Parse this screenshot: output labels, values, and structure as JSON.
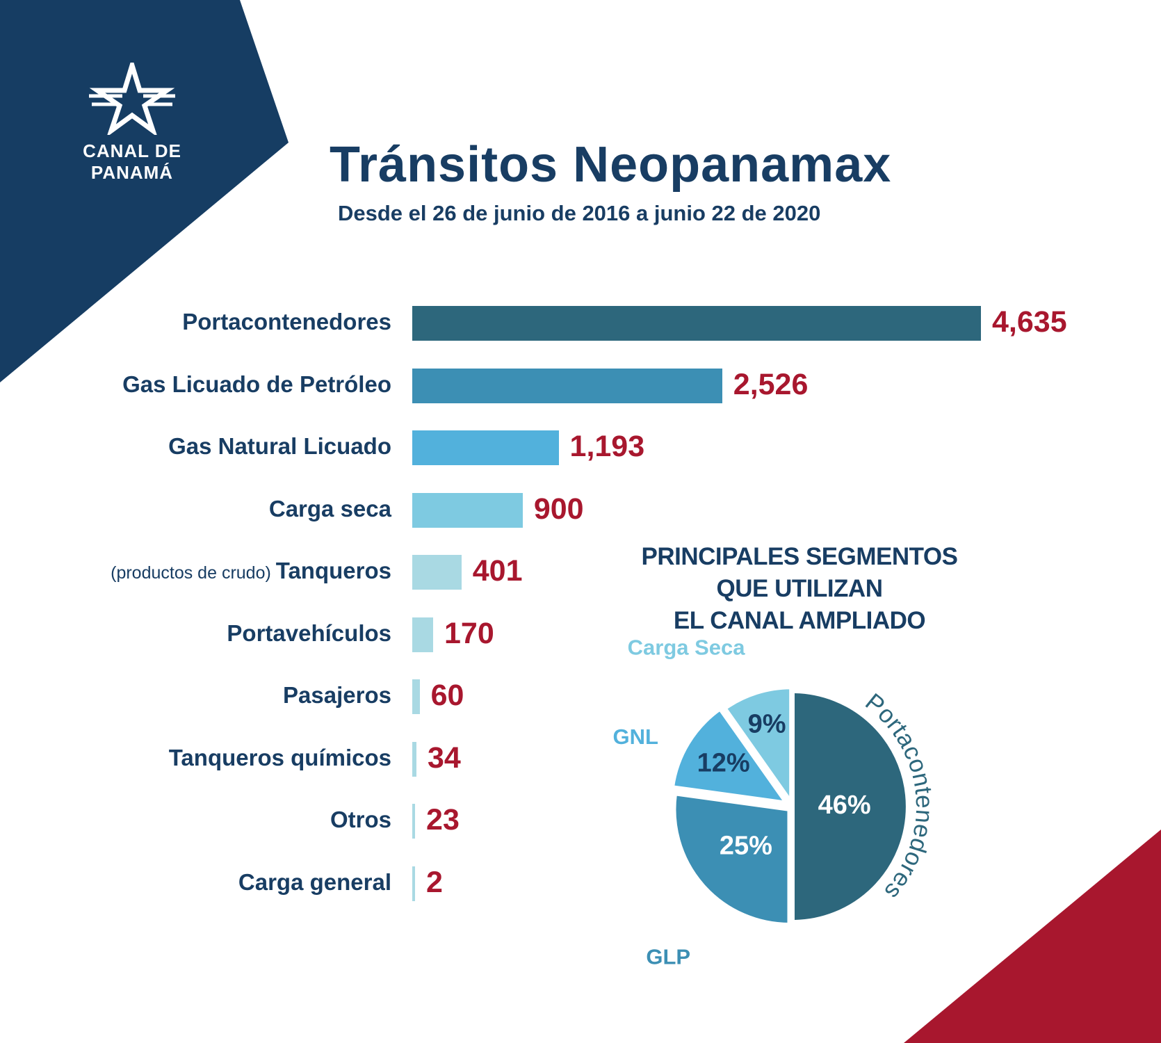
{
  "brand": {
    "logo_text": "CANAL DE PANAMÁ",
    "colors": {
      "navy": "#163d63",
      "red": "#a8172e",
      "white": "#ffffff"
    },
    "logo_icon": "star-icon"
  },
  "header": {
    "title": "Tránsitos Neopanamax",
    "subtitle": "Desde el 26 de junio de 2016 a junio 22 de 2020"
  },
  "chart_data": [
    {
      "type": "bar",
      "orientation": "horizontal",
      "title": "Tránsitos Neopanamax",
      "subtitle": "Desde el 26 de junio de 2016 a junio 22 de 2020",
      "categories": [
        {
          "label": "Portacontenedores",
          "note": "",
          "value": 4635,
          "value_label": "4,635",
          "color": "#2d677c"
        },
        {
          "label": "Gas Licuado de Petróleo",
          "note": "",
          "value": 2526,
          "value_label": "2,526",
          "color": "#3c8fb4"
        },
        {
          "label": "Gas Natural Licuado",
          "note": "",
          "value": 1193,
          "value_label": "1,193",
          "color": "#52b1dc"
        },
        {
          "label": "Carga seca",
          "note": "",
          "value": 900,
          "value_label": "900",
          "color": "#7ecae1"
        },
        {
          "label": "Tanqueros",
          "note": "(productos de crudo) ",
          "value": 401,
          "value_label": "401",
          "color": "#a9d9e3"
        },
        {
          "label": "Portavehículos",
          "note": "",
          "value": 170,
          "value_label": "170",
          "color": "#a9d9e3"
        },
        {
          "label": "Pasajeros",
          "note": "",
          "value": 60,
          "value_label": "60",
          "color": "#a9d9e3"
        },
        {
          "label": "Tanqueros químicos",
          "note": "",
          "value": 34,
          "value_label": "34",
          "color": "#a9d9e3"
        },
        {
          "label": "Otros",
          "note": "",
          "value": 23,
          "value_label": "23",
          "color": "#a9d9e3"
        },
        {
          "label": "Carga general",
          "note": "",
          "value": 2,
          "value_label": "2",
          "color": "#a9d9e3"
        }
      ],
      "xlim": [
        0,
        4635
      ]
    },
    {
      "type": "pie",
      "title": "PRINCIPALES SEGMENTOS QUE UTILIZAN EL CANAL AMPLIADO",
      "title_lines": [
        "PRINCIPALES SEGMENTOS",
        "QUE UTILIZAN",
        "EL CANAL AMPLIADO"
      ],
      "slices": [
        {
          "name": "Portacontenedores",
          "value": 46,
          "label": "46%",
          "color": "#2d677c",
          "label_color": "#2d677c",
          "text_color": "#ffffff"
        },
        {
          "name": "GLP",
          "value": 25,
          "label": "25%",
          "color": "#3c8fb4",
          "label_color": "#3c8fb4",
          "text_color": "#ffffff"
        },
        {
          "name": "GNL",
          "value": 12,
          "label": "12%",
          "color": "#52b1dc",
          "label_color": "#52b1dc",
          "text_color": "#183d63"
        },
        {
          "name": "Carga Seca",
          "value": 9,
          "label": "9%",
          "color": "#7ecae1",
          "label_color": "#7ecae1",
          "text_color": "#183d63"
        }
      ]
    }
  ]
}
